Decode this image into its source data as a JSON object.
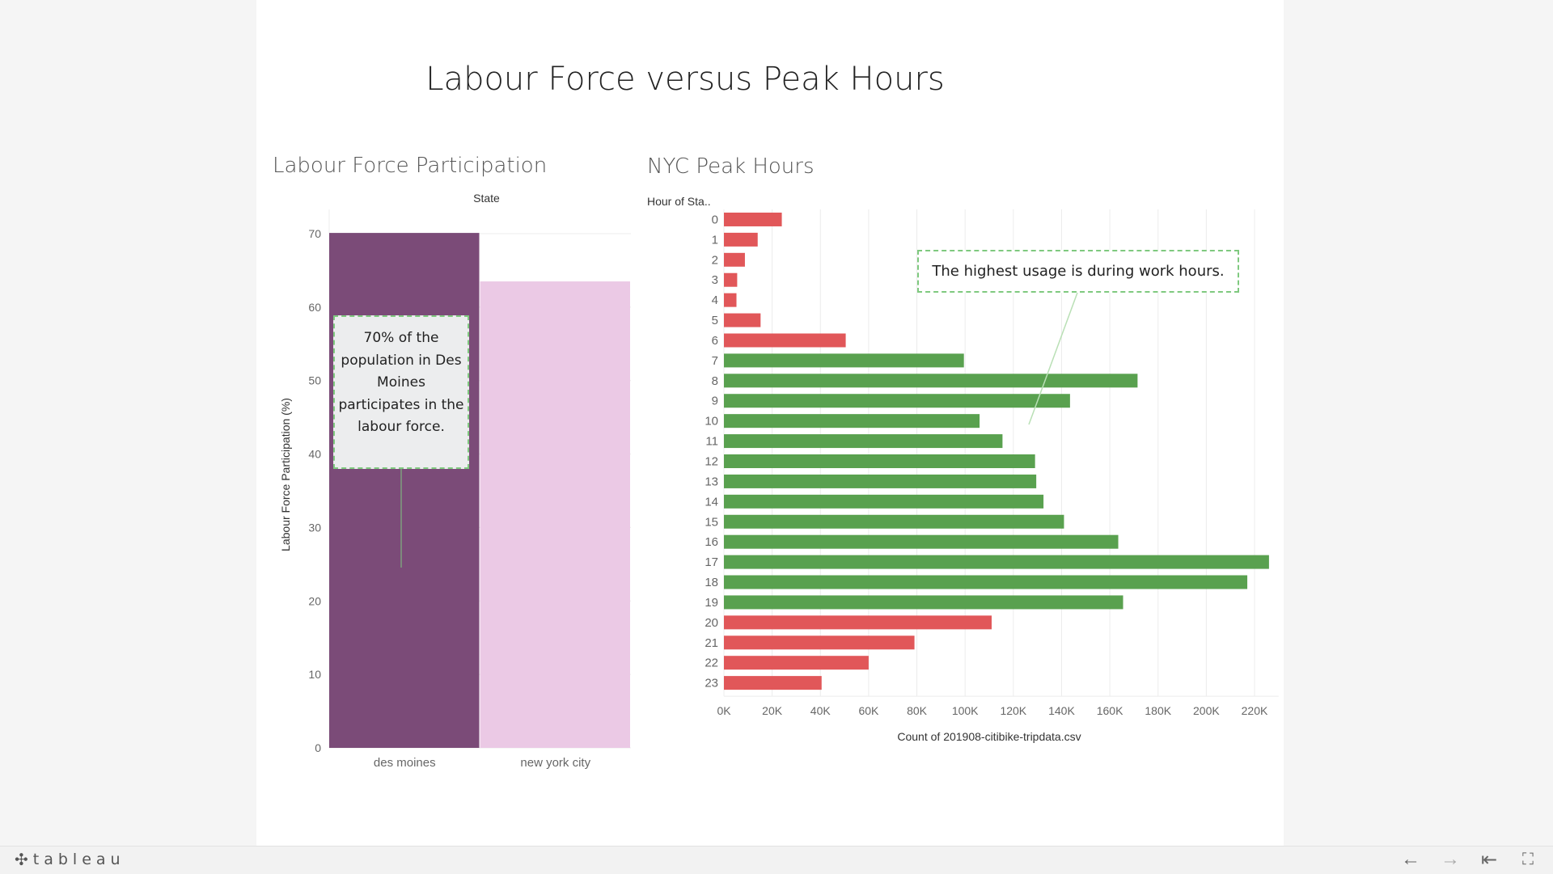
{
  "dashboard": {
    "title": "Labour Force versus Peak Hours"
  },
  "labour": {
    "title": "Labour Force Participation",
    "column_header": "State",
    "annotation": "70% of the population in Des Moines participates in the labour force."
  },
  "nyc": {
    "title": "NYC Peak Hours",
    "annotation": "The highest usage is during work hours."
  },
  "footer": {
    "logo": "tableau"
  },
  "colors": {
    "des_moines": "#7b4b78",
    "new_york_city": "#ebc9e5",
    "peak": "#59a14f",
    "offpeak": "#e15759"
  },
  "chart_data": [
    {
      "type": "bar",
      "categories": [
        "des moines",
        "new york city"
      ],
      "values": [
        70.1,
        63.5
      ],
      "ylabel": "Labour Force Participation (%)",
      "xlabel": "State",
      "ylim": [
        0,
        70
      ],
      "yticks": [
        0,
        10,
        20,
        30,
        40,
        50,
        60,
        70
      ]
    },
    {
      "type": "bar",
      "orientation": "horizontal",
      "categories": [
        "0",
        "1",
        "2",
        "3",
        "4",
        "5",
        "6",
        "7",
        "8",
        "9",
        "10",
        "11",
        "12",
        "13",
        "14",
        "15",
        "16",
        "17",
        "18",
        "19",
        "20",
        "21",
        "22",
        "23"
      ],
      "values": [
        24000,
        14000,
        8700,
        5500,
        5200,
        15200,
        50500,
        99500,
        171500,
        143500,
        106000,
        115500,
        129000,
        129500,
        132500,
        141000,
        163500,
        226000,
        217000,
        165500,
        111000,
        79000,
        60000,
        40500
      ],
      "peak": [
        false,
        false,
        false,
        false,
        false,
        false,
        false,
        true,
        true,
        true,
        true,
        true,
        true,
        true,
        true,
        true,
        true,
        true,
        true,
        true,
        false,
        false,
        false,
        false
      ],
      "ylabel": "Hour of Sta..",
      "xlabel": "Count of 201908-citibike-tripdata.csv",
      "xlim": [
        0,
        230000
      ],
      "xticks": [
        0,
        20000,
        40000,
        60000,
        80000,
        100000,
        120000,
        140000,
        160000,
        180000,
        200000,
        220000
      ],
      "xtick_labels": [
        "0K",
        "20K",
        "40K",
        "60K",
        "80K",
        "100K",
        "120K",
        "140K",
        "160K",
        "180K",
        "200K",
        "220K"
      ]
    }
  ]
}
